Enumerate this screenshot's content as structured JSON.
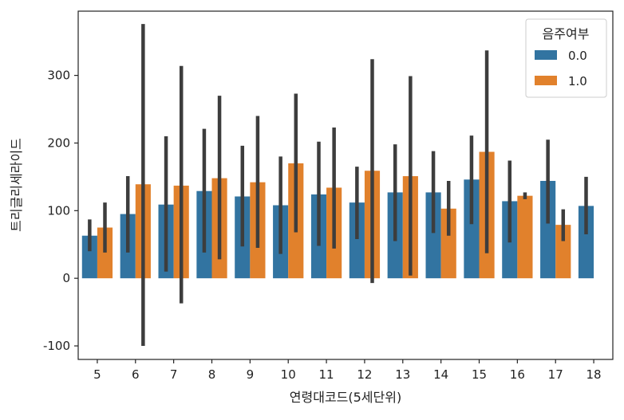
{
  "chart_data": {
    "type": "bar",
    "xlabel": "연령대코드(5세단위)",
    "ylabel": "트리글리세라이드",
    "categories": [
      "5",
      "6",
      "7",
      "8",
      "9",
      "10",
      "11",
      "12",
      "13",
      "14",
      "15",
      "16",
      "17",
      "18"
    ],
    "ylim": [
      -120,
      395
    ],
    "yticks": [
      -100,
      0,
      100,
      200,
      300
    ],
    "grid": false,
    "legend": {
      "title": "음주여부",
      "placement": "top-right"
    },
    "series": [
      {
        "name": "0.0",
        "color": "#3274a1",
        "values": [
          63,
          95,
          109,
          129,
          121,
          108,
          124,
          112,
          127,
          127,
          146,
          114,
          144,
          107
        ],
        "ci_low": [
          40,
          38,
          10,
          38,
          47,
          36,
          48,
          58,
          55,
          67,
          80,
          53,
          81,
          65
        ],
        "ci_high": [
          87,
          151,
          210,
          221,
          196,
          180,
          202,
          165,
          198,
          188,
          211,
          174,
          205,
          150
        ]
      },
      {
        "name": "1.0",
        "color": "#e1812c",
        "values": [
          75,
          139,
          137,
          148,
          142,
          170,
          134,
          159,
          151,
          103,
          187,
          122,
          79,
          null
        ],
        "ci_low": [
          38,
          -100,
          -37,
          28,
          45,
          68,
          44,
          -7,
          4,
          63,
          37,
          117,
          55,
          null
        ],
        "ci_high": [
          112,
          376,
          314,
          270,
          240,
          273,
          223,
          324,
          299,
          144,
          337,
          127,
          102,
          null
        ]
      }
    ]
  }
}
